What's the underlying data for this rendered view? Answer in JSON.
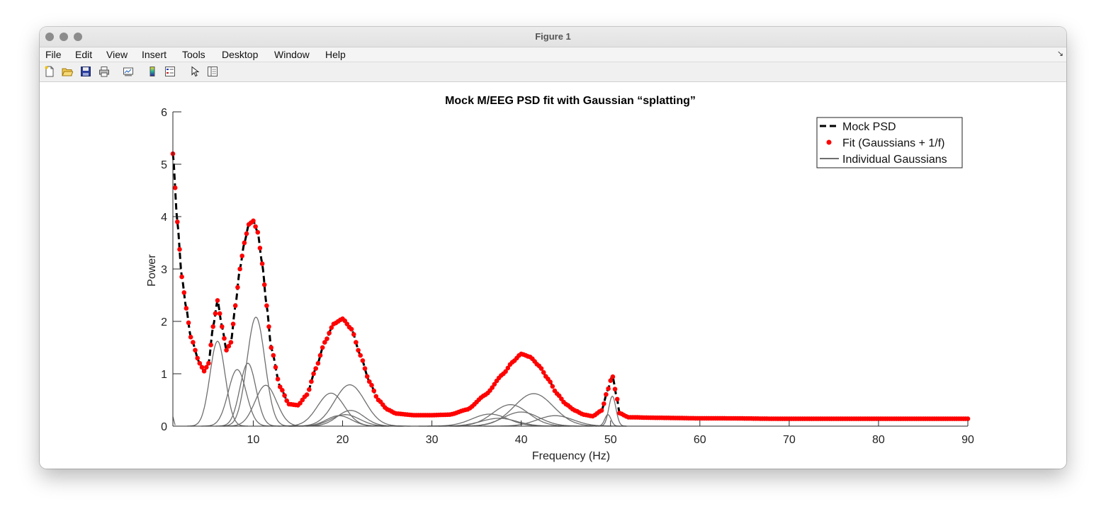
{
  "window": {
    "title": "Figure 1"
  },
  "menu": [
    {
      "id": "file",
      "label": "File"
    },
    {
      "id": "edit",
      "label": "Edit"
    },
    {
      "id": "view",
      "label": "View"
    },
    {
      "id": "insert",
      "label": "Insert"
    },
    {
      "id": "tools",
      "label": "Tools"
    },
    {
      "id": "desktop",
      "label": "Desktop"
    },
    {
      "id": "window",
      "label": "Window"
    },
    {
      "id": "help",
      "label": "Help"
    }
  ],
  "toolbar": [
    {
      "id": "new-figure",
      "icon": "new-file-icon"
    },
    {
      "id": "open-file",
      "icon": "folder-open-icon"
    },
    {
      "id": "save-figure",
      "icon": "floppy-disk-icon"
    },
    {
      "id": "print-figure",
      "icon": "printer-icon"
    },
    {
      "id": "link-plot",
      "icon": "link-plot-icon"
    },
    {
      "id": "insert-colorbar",
      "icon": "colorbar-icon"
    },
    {
      "id": "insert-legend",
      "icon": "legend-icon"
    },
    {
      "id": "edit-plot",
      "icon": "pointer-arrow-icon"
    },
    {
      "id": "property-inspector",
      "icon": "property-inspector-icon"
    }
  ],
  "colors": {
    "psd": "#000000",
    "fit": "#ff0000",
    "gauss": "#6e6e6e"
  },
  "chart_data": {
    "type": "line",
    "title": "Mock M/EEG PSD fit with Gaussian “splatting”",
    "xlabel": "Frequency (Hz)",
    "ylabel": "Power",
    "xlim": [
      1,
      90
    ],
    "ylim": [
      0,
      6
    ],
    "xticks": [
      10,
      20,
      30,
      40,
      50,
      60,
      70,
      80,
      90
    ],
    "yticks": [
      0,
      1,
      2,
      3,
      4,
      5,
      6
    ],
    "grid": false,
    "legend": {
      "position": "top-right",
      "entries": [
        "Mock PSD",
        "Fit (Gaussians + 1/f)",
        "Individual Gaussians"
      ]
    },
    "aperiodic": {
      "amplitude": 5.2,
      "exponent": 1.3,
      "offset": 0.12
    },
    "gaussians": [
      {
        "center": 6.0,
        "amplitude": 1.62,
        "sigma": 0.85
      },
      {
        "center": 8.2,
        "amplitude": 1.08,
        "sigma": 1.0
      },
      {
        "center": 9.4,
        "amplitude": 1.2,
        "sigma": 0.9
      },
      {
        "center": 10.3,
        "amplitude": 2.08,
        "sigma": 1.0
      },
      {
        "center": 11.4,
        "amplitude": 0.78,
        "sigma": 1.2
      },
      {
        "center": 18.7,
        "amplitude": 0.63,
        "sigma": 1.5
      },
      {
        "center": 19.6,
        "amplitude": 0.2,
        "sigma": 1.4
      },
      {
        "center": 20.3,
        "amplitude": 0.22,
        "sigma": 1.6
      },
      {
        "center": 20.9,
        "amplitude": 0.3,
        "sigma": 1.5
      },
      {
        "center": 20.8,
        "amplitude": 0.79,
        "sigma": 1.7
      },
      {
        "center": 36.5,
        "amplitude": 0.23,
        "sigma": 2.0
      },
      {
        "center": 37.5,
        "amplitude": 0.15,
        "sigma": 2.0
      },
      {
        "center": 38.8,
        "amplitude": 0.41,
        "sigma": 2.0
      },
      {
        "center": 40.0,
        "amplitude": 0.27,
        "sigma": 2.0
      },
      {
        "center": 41.4,
        "amplitude": 0.62,
        "sigma": 2.2
      },
      {
        "center": 43.8,
        "amplitude": 0.2,
        "sigma": 2.0
      },
      {
        "center": 49.7,
        "amplitude": 0.22,
        "sigma": 0.35
      },
      {
        "center": 50.2,
        "amplitude": 0.57,
        "sigma": 0.4
      }
    ],
    "psd_points": [
      [
        1,
        5.2
      ],
      [
        1.5,
        3.9
      ],
      [
        2,
        2.85
      ],
      [
        2.5,
        2.25
      ],
      [
        3,
        1.7
      ],
      [
        4,
        1.2
      ],
      [
        4.5,
        1.05
      ],
      [
        5,
        1.2
      ],
      [
        5.5,
        1.9
      ],
      [
        6,
        2.4
      ],
      [
        6.5,
        1.9
      ],
      [
        7,
        1.45
      ],
      [
        7.5,
        1.6
      ],
      [
        8,
        2.3
      ],
      [
        8.5,
        3.0
      ],
      [
        9,
        3.5
      ],
      [
        9.5,
        3.85
      ],
      [
        10,
        3.92
      ],
      [
        10.5,
        3.7
      ],
      [
        11,
        3.1
      ],
      [
        11.5,
        2.3
      ],
      [
        12,
        1.5
      ],
      [
        13,
        0.75
      ],
      [
        14,
        0.42
      ],
      [
        15,
        0.4
      ],
      [
        16,
        0.6
      ],
      [
        17,
        1.1
      ],
      [
        18,
        1.6
      ],
      [
        19,
        1.95
      ],
      [
        20,
        2.05
      ],
      [
        21,
        1.85
      ],
      [
        22,
        1.35
      ],
      [
        23,
        0.85
      ],
      [
        24,
        0.5
      ],
      [
        25,
        0.32
      ],
      [
        26,
        0.24
      ],
      [
        28,
        0.21
      ],
      [
        30,
        0.21
      ],
      [
        32,
        0.22
      ],
      [
        34,
        0.32
      ],
      [
        36,
        0.6
      ],
      [
        38,
        1.0
      ],
      [
        39,
        1.22
      ],
      [
        40,
        1.38
      ],
      [
        41,
        1.32
      ],
      [
        42,
        1.15
      ],
      [
        43,
        0.9
      ],
      [
        44,
        0.62
      ],
      [
        45,
        0.42
      ],
      [
        46,
        0.3
      ],
      [
        47,
        0.22
      ],
      [
        48,
        0.19
      ],
      [
        49,
        0.3
      ],
      [
        49.7,
        0.7
      ],
      [
        50.2,
        0.97
      ],
      [
        50.7,
        0.55
      ],
      [
        51,
        0.25
      ],
      [
        52,
        0.17
      ],
      [
        55,
        0.16
      ],
      [
        60,
        0.15
      ],
      [
        62,
        0.15
      ],
      [
        70,
        0.14
      ],
      [
        80,
        0.14
      ],
      [
        90,
        0.14
      ]
    ]
  }
}
